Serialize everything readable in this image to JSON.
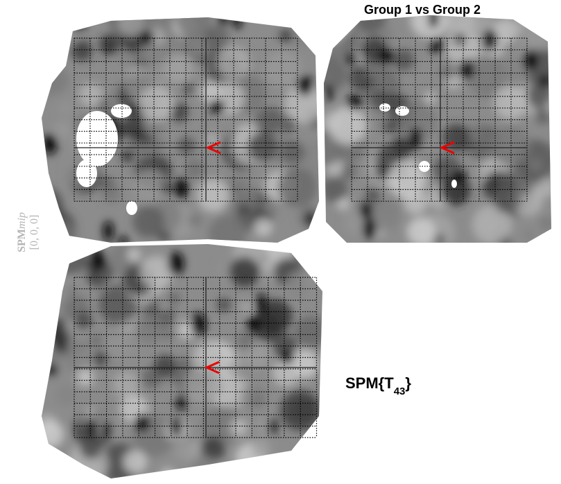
{
  "title": "Group 1 vs Group 2",
  "mip_label": {
    "name": "SPM",
    "italic": "mip",
    "coords": "[0, 0, 0]"
  },
  "stat_label": {
    "prefix": "SPM{T",
    "df": "43",
    "suffix": "}"
  }
}
